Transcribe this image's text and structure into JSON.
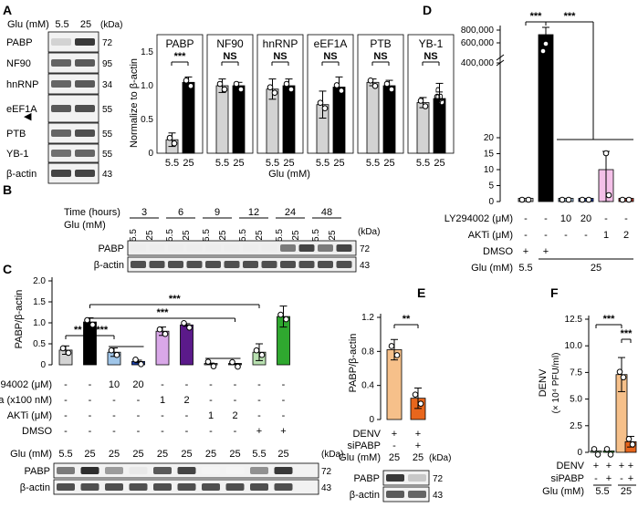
{
  "panel_letters": [
    "A",
    "B",
    "C",
    "D",
    "E",
    "F"
  ],
  "kda": "(kDa)",
  "panel_a": {
    "glu_label": "Glu (mM)",
    "glu_values": [
      "5.5",
      "25"
    ],
    "blot_rows": [
      {
        "label": "PABP",
        "kda": "72"
      },
      {
        "label": "NF90",
        "kda": "95"
      },
      {
        "label": "hnRNP",
        "kda": "34"
      },
      {
        "label": "eEF1A",
        "kda": "55"
      },
      {
        "label": "PTB",
        "kda": "55"
      },
      {
        "label": "YB-1",
        "kda": "55"
      },
      {
        "label": "β-actin",
        "kda": "43"
      }
    ],
    "arrow_symbol": "◀"
  },
  "panel_b": {
    "time_label": "Time (hours)",
    "times": [
      "3",
      "6",
      "9",
      "12",
      "24",
      "48"
    ],
    "glu_label": "Glu (mM)",
    "glu_values": [
      "5.5",
      "25"
    ],
    "blot_rows": [
      {
        "label": "PABP",
        "kda": "72"
      },
      {
        "label": "β-actin",
        "kda": "43"
      }
    ]
  },
  "panel_c": {
    "row_labels": [
      "LY294002 (μM)",
      "Rapa (x100 nM)",
      "AKTi (μM)",
      "DMSO"
    ],
    "rows": [
      [
        "-",
        "-",
        "10",
        "20",
        "-",
        "-",
        "-",
        "-",
        "-",
        "-"
      ],
      [
        "-",
        "-",
        "-",
        "-",
        "1",
        "2",
        "-",
        "-",
        "-",
        "-"
      ],
      [
        "-",
        "-",
        "-",
        "-",
        "-",
        "-",
        "1",
        "2",
        "-",
        "-"
      ],
      [
        "-",
        "-",
        "-",
        "-",
        "-",
        "-",
        "-",
        "-",
        "+",
        "+"
      ]
    ],
    "glu_label": "Glu (mM)",
    "glu_values": [
      "5.5",
      "25",
      "25",
      "25",
      "25",
      "25",
      "25",
      "25",
      "5.5",
      "25"
    ],
    "blot_rows": [
      {
        "label": "PABP",
        "kda": "72"
      },
      {
        "label": "β-actin",
        "kda": "43"
      }
    ]
  },
  "panel_d": {
    "row_labels": [
      "LY294002 (μM)",
      "AKTi (μM)",
      "DMSO",
      "Glu (mM)"
    ],
    "rows": [
      [
        "-",
        "-",
        "10",
        "20",
        "-",
        "-"
      ],
      [
        "-",
        "-",
        "-",
        "-",
        "1",
        "2"
      ],
      [
        "+",
        "+",
        "",
        "",
        "",
        ""
      ]
    ],
    "glu_groups": [
      "5.5",
      "25"
    ]
  },
  "panel_e": {
    "row_labels": [
      "DENV",
      "siPABP",
      "Glu (mM)"
    ],
    "rows": [
      [
        "+",
        "+"
      ],
      [
        "-",
        "+"
      ],
      [
        "25",
        "25"
      ]
    ],
    "blot_rows": [
      {
        "label": "PABP",
        "kda": "72"
      },
      {
        "label": "β-actin",
        "kda": "43"
      }
    ]
  },
  "panel_f": {
    "row_labels": [
      "DENV",
      "siPABP",
      "Glu (mM)"
    ],
    "rows": [
      [
        "+",
        "+",
        "+",
        "+"
      ],
      [
        "-",
        "+",
        "-",
        "+"
      ]
    ],
    "glu_groups": [
      "5.5",
      "25"
    ]
  },
  "chart_data": [
    {
      "id": "A-chart",
      "type": "bar",
      "ylabel": "Normalize to β-actin",
      "xlabel": "Glu (mM)",
      "subpanels": [
        {
          "title": "PABP",
          "categories": [
            "5.5",
            "25"
          ],
          "values": [
            0.2,
            1.05
          ],
          "errors": [
            0.1,
            0.08
          ],
          "significance": "***",
          "ylim": [
            0,
            1.5
          ],
          "yticks": [
            "0",
            "0.5",
            "1.0",
            "1.5"
          ]
        },
        {
          "title": "NF90",
          "categories": [
            "5.5",
            "25"
          ],
          "values": [
            1.0,
            1.0
          ],
          "errors": [
            0.1,
            0.05
          ],
          "significance": "NS",
          "ylim": [
            0,
            1.5
          ]
        },
        {
          "title": "hnRNP",
          "categories": [
            "5.5",
            "25"
          ],
          "values": [
            0.95,
            1.0
          ],
          "errors": [
            0.15,
            0.1
          ],
          "significance": "NS",
          "ylim": [
            0,
            1.5
          ]
        },
        {
          "title": "eEF1A",
          "categories": [
            "5.5",
            "25"
          ],
          "values": [
            0.72,
            0.98
          ],
          "errors": [
            0.2,
            0.15
          ],
          "significance": "NS",
          "ylim": [
            0,
            1.5
          ]
        },
        {
          "title": "PTB",
          "categories": [
            "5.5",
            "25"
          ],
          "values": [
            1.05,
            1.0
          ],
          "errors": [
            0.05,
            0.08
          ],
          "significance": "NS",
          "ylim": [
            0,
            1.5
          ]
        },
        {
          "title": "YB-1",
          "categories": [
            "5.5",
            "25"
          ],
          "values": [
            1.0,
            1.08
          ],
          "errors": [
            0.1,
            0.3
          ],
          "significance": "NS",
          "ylim": [
            0,
            2.0
          ],
          "yticks": [
            "0",
            "0.5",
            "1.0",
            "1.5",
            "2.0"
          ]
        }
      ],
      "colors": [
        "#d3d3d3",
        "#000000"
      ]
    },
    {
      "id": "C-chart",
      "type": "bar",
      "ylabel": "PABP/β-actin",
      "ylim": [
        0,
        2.0
      ],
      "yticks": [
        "0",
        "0.5",
        "1.0",
        "1.5",
        "2.0"
      ],
      "values": [
        0.35,
        1.02,
        0.3,
        0.08,
        0.8,
        0.95,
        0.03,
        0.02,
        0.3,
        1.15
      ],
      "errors": [
        0.1,
        0.1,
        0.1,
        0.03,
        0.1,
        0.03,
        0.01,
        0.01,
        0.2,
        0.25
      ],
      "colors": [
        "#d3d3d3",
        "#000000",
        "#9fc5e8",
        "#1b3fa8",
        "#d9a8e8",
        "#5b1a8a",
        "#888888",
        "#333333",
        "#b8e0b0",
        "#2fa82f"
      ],
      "significance": [
        "**",
        "***",
        "***",
        "***"
      ]
    },
    {
      "id": "D-chart",
      "type": "bar",
      "ylabel": "RQ of PABP",
      "yticks": [
        "0",
        "5",
        "10",
        "15",
        "20",
        "400,000",
        "600,000",
        "800,000"
      ],
      "values": [
        1,
        500000,
        1,
        1,
        10,
        1
      ],
      "errors": [
        0,
        150000,
        0.3,
        0.3,
        7,
        0.2
      ],
      "colors": [
        "#d3d3d3",
        "#000000",
        "#9fc5e8",
        "#1b3fa8",
        "#f4c0e8",
        "#c0392b"
      ],
      "significance": [
        "***",
        "***"
      ]
    },
    {
      "id": "E-chart",
      "type": "bar",
      "ylabel": "PABP/β-actin",
      "ylim": [
        0,
        1.2
      ],
      "yticks": [
        "0",
        "0.4",
        "0.8",
        "1.2"
      ],
      "values": [
        0.82,
        0.25
      ],
      "errors": [
        0.12,
        0.12
      ],
      "colors": [
        "#f6c08a",
        "#e8661c"
      ],
      "significance": "**"
    },
    {
      "id": "F-chart",
      "type": "bar",
      "ylabel": "DENV",
      "ylabel2": "(× 10⁴ PFU/ml)",
      "ylim": [
        0,
        12.5
      ],
      "yticks": [
        "0",
        "2.5",
        "5.0",
        "7.5",
        "10.0",
        "12.5"
      ],
      "values": [
        0.05,
        0.05,
        7.3,
        1.0
      ],
      "errors": [
        0,
        0,
        1.6,
        0.5
      ],
      "colors": [
        "#9fd8a0",
        "#2fa82f",
        "#f6c08a",
        "#e8661c"
      ],
      "significance": [
        "***",
        "***"
      ]
    }
  ]
}
